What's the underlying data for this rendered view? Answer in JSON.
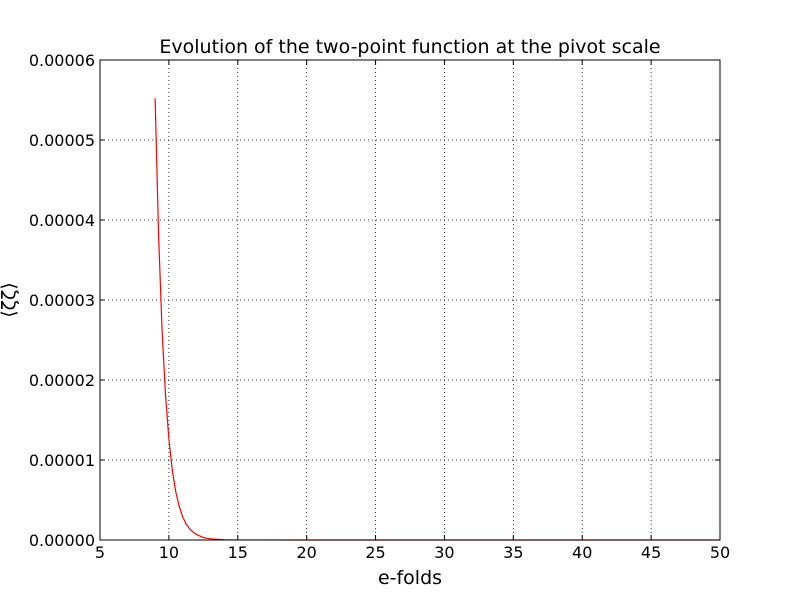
{
  "chart_data": {
    "type": "line",
    "title": "Evolution of the two-point function at the pivot scale",
    "xlabel": "e-folds",
    "ylabel": "⟨ζζ⟩",
    "xlim": [
      5,
      50
    ],
    "ylim": [
      0,
      6e-05
    ],
    "x_ticks": [
      "5",
      "10",
      "15",
      "20",
      "25",
      "30",
      "35",
      "40",
      "45",
      "50"
    ],
    "y_ticks": [
      "0.00000",
      "0.00001",
      "0.00002",
      "0.00003",
      "0.00004",
      "0.00005",
      "0.00006"
    ],
    "grid": true,
    "series": [
      {
        "color": "#ff0000",
        "x": [
          9.0,
          9.25,
          9.5,
          9.75,
          10.0,
          10.25,
          10.5,
          10.75,
          11.0,
          11.25,
          11.5,
          11.75,
          12.0,
          12.5,
          13.0,
          14.0,
          15.0,
          20.0,
          30.0,
          40.0,
          50.0
        ],
        "y": [
          5.52e-05,
          3.82e-05,
          2.64e-05,
          1.83e-05,
          1.26e-05,
          8.7e-06,
          6e-06,
          4.2e-06,
          2.9e-06,
          2e-06,
          1.4e-06,
          1e-06,
          7e-07,
          3e-07,
          1.5e-07,
          3e-08,
          1e-08,
          0.0,
          0.0,
          0.0,
          0.0
        ]
      }
    ]
  }
}
